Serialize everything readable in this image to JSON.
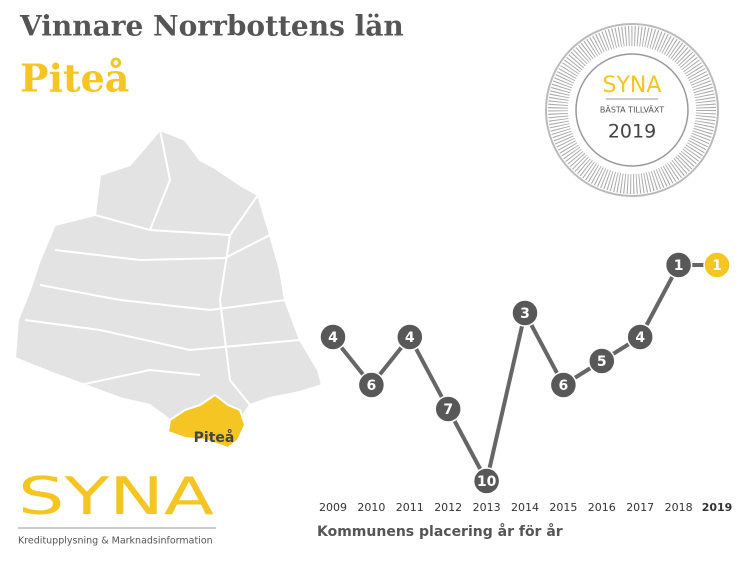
{
  "header": {
    "title": "Vinnare Norrbottens län",
    "subtitle": "Piteå"
  },
  "badge": {
    "brand": "SYNA",
    "label": "BÄSTA TILLVÄXT",
    "year": "2019"
  },
  "map": {
    "label": "Piteå"
  },
  "logo": {
    "brand": "SYNA",
    "tagline": "Kreditupplysning & Marknadsinformation"
  },
  "chart_data": {
    "type": "line",
    "x_label": "Kommunens placering år för år",
    "categories": [
      "2009",
      "2010",
      "2011",
      "2012",
      "2013",
      "2014",
      "2015",
      "2016",
      "2017",
      "2018",
      "2019"
    ],
    "values": [
      4,
      6,
      4,
      7,
      10,
      3,
      6,
      5,
      4,
      1,
      1
    ],
    "color": "#585858",
    "highlight_color": "#f5c523"
  }
}
